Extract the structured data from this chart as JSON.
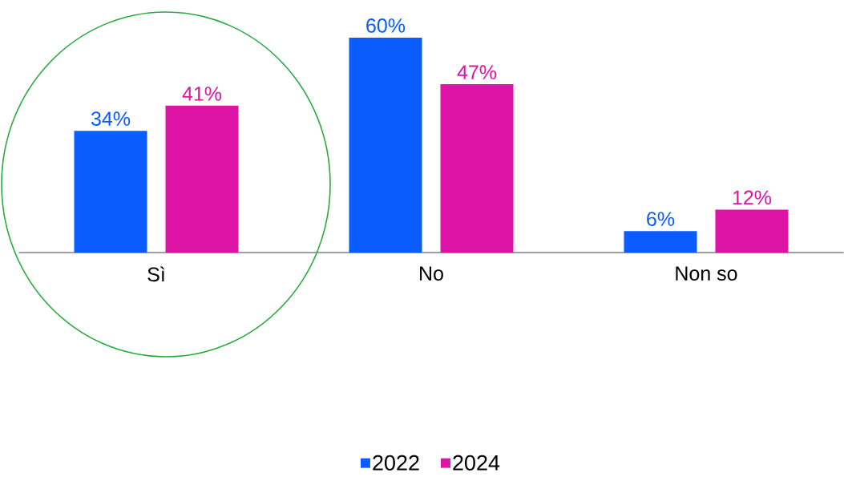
{
  "chart_data": {
    "type": "bar",
    "categories": [
      "Sì",
      "No",
      "Non so"
    ],
    "series": [
      {
        "name": "2022",
        "color": "#0a5cff",
        "values": [
          34,
          60,
          6
        ],
        "value_labels": [
          "34%",
          "60%",
          "6%"
        ]
      },
      {
        "name": "2024",
        "color": "#dd14a5",
        "values": [
          41,
          47,
          12
        ],
        "value_labels": [
          "41%",
          "47%",
          "12%"
        ]
      }
    ],
    "legend": "bottom"
  }
}
